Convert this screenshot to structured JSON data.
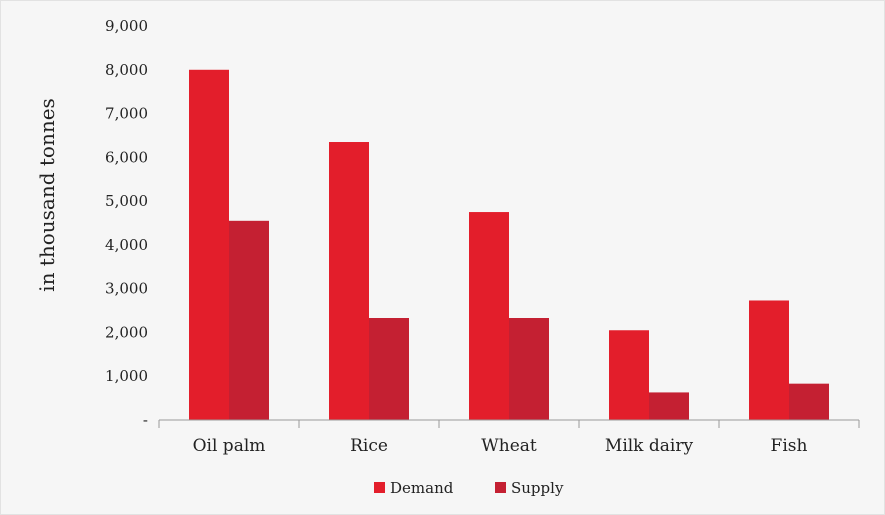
{
  "chart_data": {
    "type": "bar",
    "categories": [
      "Oil palm",
      "Rice",
      "Wheat",
      "Milk dairy",
      "Fish"
    ],
    "series": [
      {
        "name": "Demand",
        "values": [
          8000,
          6350,
          4750,
          2050,
          2730
        ],
        "color": "#e31e2b"
      },
      {
        "name": "Supply",
        "values": [
          4550,
          2330,
          2330,
          630,
          830
        ],
        "color": "#c42032"
      }
    ],
    "ylabel": "in thousand tonnes",
    "ylim": [
      0,
      9000
    ],
    "yticks": [
      0,
      1000,
      2000,
      3000,
      4000,
      5000,
      6000,
      7000,
      8000,
      9000
    ],
    "ytick_labels": [
      "-",
      "1,000",
      "2,000",
      "3,000",
      "4,000",
      "5,000",
      "6,000",
      "7,000",
      "8,000",
      "9,000"
    ],
    "grid": false,
    "legend_position": "bottom-center"
  }
}
